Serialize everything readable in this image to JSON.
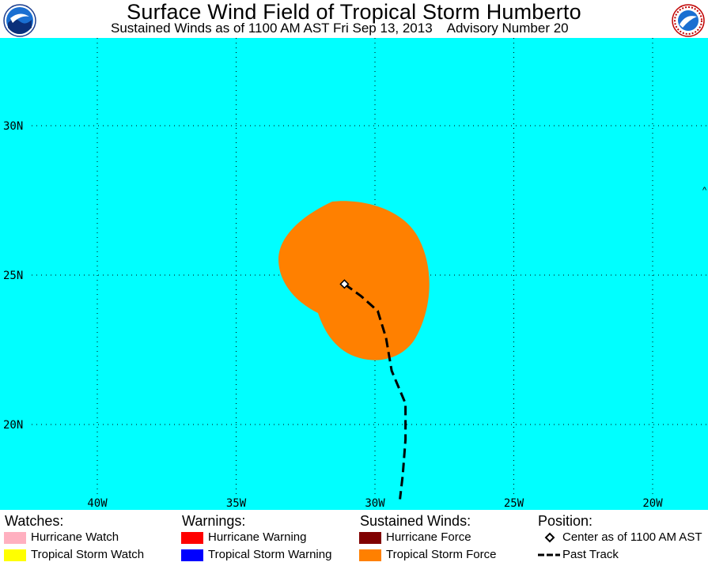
{
  "header": {
    "title": "Surface Wind Field of Tropical Storm Humberto",
    "subtitle": "Sustained Winds as of 1100 AM AST Fri Sep 13, 2013    Advisory Number 20",
    "logo_left": "noaa-logo",
    "logo_right": "nws-logo"
  },
  "map": {
    "ocean_color": "#00ffff",
    "lat_labels": [
      "30N",
      "25N",
      "20N"
    ],
    "lon_labels": [
      "40W",
      "35W",
      "30W",
      "25W",
      "20W"
    ],
    "gridlines": "dotted",
    "wind_field": {
      "category": "Tropical Storm Force",
      "color": "#ff8000"
    },
    "center": {
      "lat": 24.7,
      "lon": -31.1,
      "label": "Center as of 1100 AM AST"
    },
    "past_track": [
      [
        24.7,
        -31.1
      ],
      [
        24.3,
        -30.5
      ],
      [
        23.8,
        -29.9
      ],
      [
        22.9,
        -29.6
      ],
      [
        21.8,
        -29.4
      ],
      [
        20.7,
        -28.9
      ],
      [
        19.5,
        -28.9
      ],
      [
        18.3,
        -29.0
      ],
      [
        17.5,
        -29.1
      ]
    ]
  },
  "legend": {
    "watches": {
      "heading": "Watches:",
      "items": [
        {
          "label": "Hurricane Watch",
          "color": "#ffb0c0"
        },
        {
          "label": "Tropical Storm Watch",
          "color": "#ffff00"
        }
      ]
    },
    "warnings": {
      "heading": "Warnings:",
      "items": [
        {
          "label": "Hurricane Warning",
          "color": "#ff0000"
        },
        {
          "label": "Tropical Storm Warning",
          "color": "#0000ff"
        }
      ]
    },
    "winds": {
      "heading": "Sustained Winds:",
      "items": [
        {
          "label": "Hurricane Force",
          "color": "#800000"
        },
        {
          "label": "Tropical Storm Force",
          "color": "#ff8000"
        }
      ]
    },
    "position": {
      "heading": "Position:",
      "items": [
        {
          "label": "Center as of 1100 AM AST",
          "icon": "diamond-icon"
        },
        {
          "label": "Past Track",
          "icon": "dashed-line-icon"
        }
      ]
    }
  }
}
